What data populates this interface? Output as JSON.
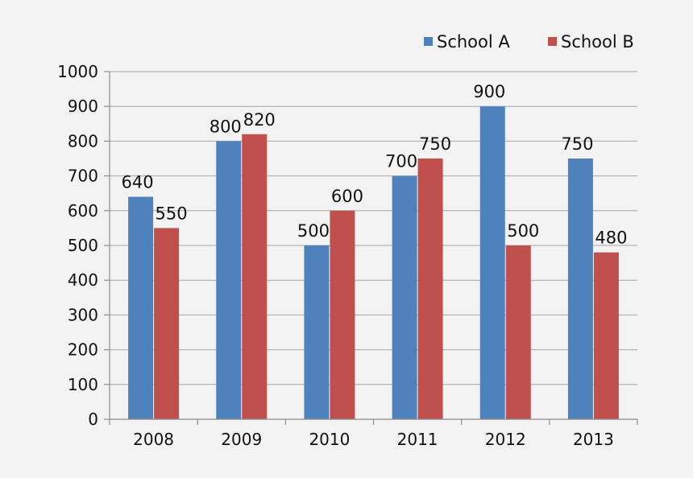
{
  "chart_data": {
    "type": "bar",
    "title": "",
    "xlabel": "",
    "ylabel": "",
    "categories": [
      "2008",
      "2009",
      "2010",
      "2011",
      "2012",
      "2013"
    ],
    "series": [
      {
        "name": "School A",
        "color": "#4f81bd",
        "values": [
          640,
          800,
          500,
          700,
          900,
          750
        ]
      },
      {
        "name": "School B",
        "color": "#c0504d",
        "values": [
          550,
          820,
          600,
          750,
          500,
          480
        ]
      }
    ],
    "ylim": [
      0,
      1000
    ],
    "yticks": [
      "0",
      "100",
      "200",
      "300",
      "400",
      "500",
      "600",
      "700",
      "800",
      "900",
      "1000"
    ],
    "grid": true,
    "legend_position": "top-right",
    "data_labels": true
  }
}
